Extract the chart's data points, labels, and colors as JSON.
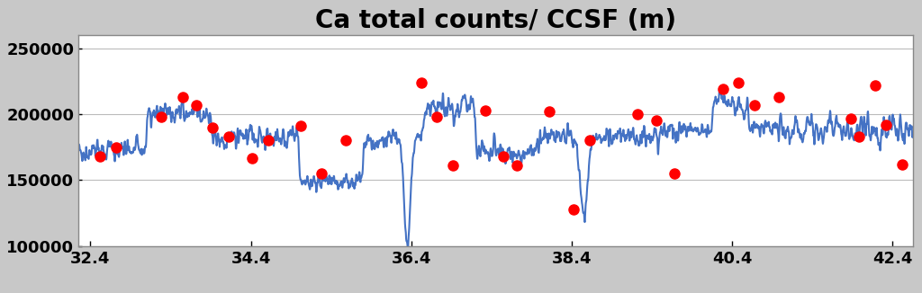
{
  "title": "Ca total counts/ CCSF (m)",
  "xlim": [
    32.25,
    42.65
  ],
  "ylim": [
    100000,
    260000
  ],
  "xticks": [
    32.4,
    34.4,
    36.4,
    38.4,
    40.4,
    42.4
  ],
  "yticks": [
    100000,
    150000,
    200000,
    250000
  ],
  "ytick_labels": [
    "100000",
    "150000",
    "200000",
    "250000"
  ],
  "line_color": "#4472C4",
  "dot_color": "#FF0000",
  "bg_outer": "#C8C8C8",
  "bg_inner": "#FFFFFF",
  "title_fontsize": 20,
  "tick_fontsize": 13,
  "red_dots": [
    [
      32.52,
      168000
    ],
    [
      32.72,
      175000
    ],
    [
      33.28,
      198000
    ],
    [
      33.55,
      213000
    ],
    [
      33.72,
      207000
    ],
    [
      33.92,
      190000
    ],
    [
      34.12,
      183000
    ],
    [
      34.42,
      167000
    ],
    [
      34.62,
      180000
    ],
    [
      35.02,
      191000
    ],
    [
      35.28,
      155000
    ],
    [
      35.58,
      180000
    ],
    [
      36.52,
      224000
    ],
    [
      36.72,
      198000
    ],
    [
      36.92,
      161000
    ],
    [
      37.32,
      203000
    ],
    [
      37.55,
      168000
    ],
    [
      37.72,
      161000
    ],
    [
      38.12,
      202000
    ],
    [
      38.42,
      128000
    ],
    [
      38.62,
      180000
    ],
    [
      39.22,
      200000
    ],
    [
      39.45,
      195000
    ],
    [
      39.68,
      155000
    ],
    [
      40.28,
      219000
    ],
    [
      40.48,
      224000
    ],
    [
      40.68,
      207000
    ],
    [
      40.98,
      213000
    ],
    [
      41.88,
      197000
    ],
    [
      41.98,
      183000
    ],
    [
      42.18,
      222000
    ],
    [
      42.32,
      192000
    ],
    [
      42.52,
      162000
    ]
  ]
}
